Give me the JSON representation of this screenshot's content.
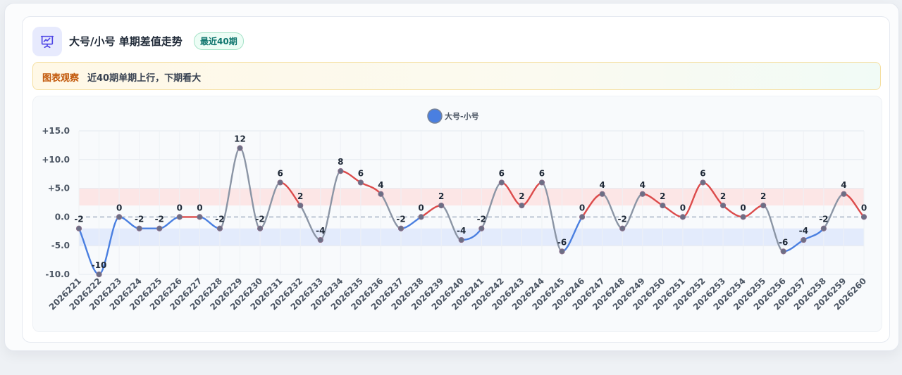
{
  "header": {
    "title": "大号/小号 单期差值走势",
    "badge": "最近40期",
    "icon": "presentation-chart-icon"
  },
  "note": {
    "label": "图表观察",
    "text": "近40期单期上行，下期看大"
  },
  "colors": {
    "up": "#dc4b4b",
    "down": "#4a7fe0",
    "flat": "#8b95a5",
    "legend": "#4a7fe0",
    "band_pos": "#fde2e2",
    "band_neg": "#dfe7fb"
  },
  "chart_data": {
    "type": "line",
    "series": [
      {
        "name": "大号-小号",
        "values": [
          -2,
          -10,
          0,
          -2,
          -2,
          0,
          0,
          -2,
          12,
          -2,
          6,
          2,
          -4,
          8,
          6,
          4,
          -2,
          0,
          2,
          -4,
          -2,
          6,
          2,
          6,
          -6,
          0,
          4,
          -2,
          4,
          2,
          0,
          6,
          2,
          0,
          2,
          -6,
          -4,
          -2,
          4,
          0
        ]
      }
    ],
    "categories": [
      "2026221",
      "2026222",
      "2026223",
      "2026224",
      "2026225",
      "2026226",
      "2026227",
      "2026228",
      "2026229",
      "2026230",
      "2026231",
      "2026232",
      "2026233",
      "2026234",
      "2026235",
      "2026236",
      "2026237",
      "2026238",
      "2026239",
      "2026240",
      "2026241",
      "2026242",
      "2026243",
      "2026244",
      "2026245",
      "2026246",
      "2026247",
      "2026248",
      "2026249",
      "2026250",
      "2026251",
      "2026252",
      "2026253",
      "2026254",
      "2026255",
      "2026256",
      "2026257",
      "2026258",
      "2026259",
      "2026260"
    ],
    "yticks": [
      "+15.0",
      "+10.0",
      "+5.0",
      "0.0",
      "-5.0",
      "-10.0"
    ],
    "ylim": [
      -10,
      15
    ],
    "bands": [
      [
        2,
        5
      ],
      [
        -5,
        -2
      ]
    ],
    "zero_line": "dashed",
    "grid": true,
    "legend": "top-center"
  }
}
